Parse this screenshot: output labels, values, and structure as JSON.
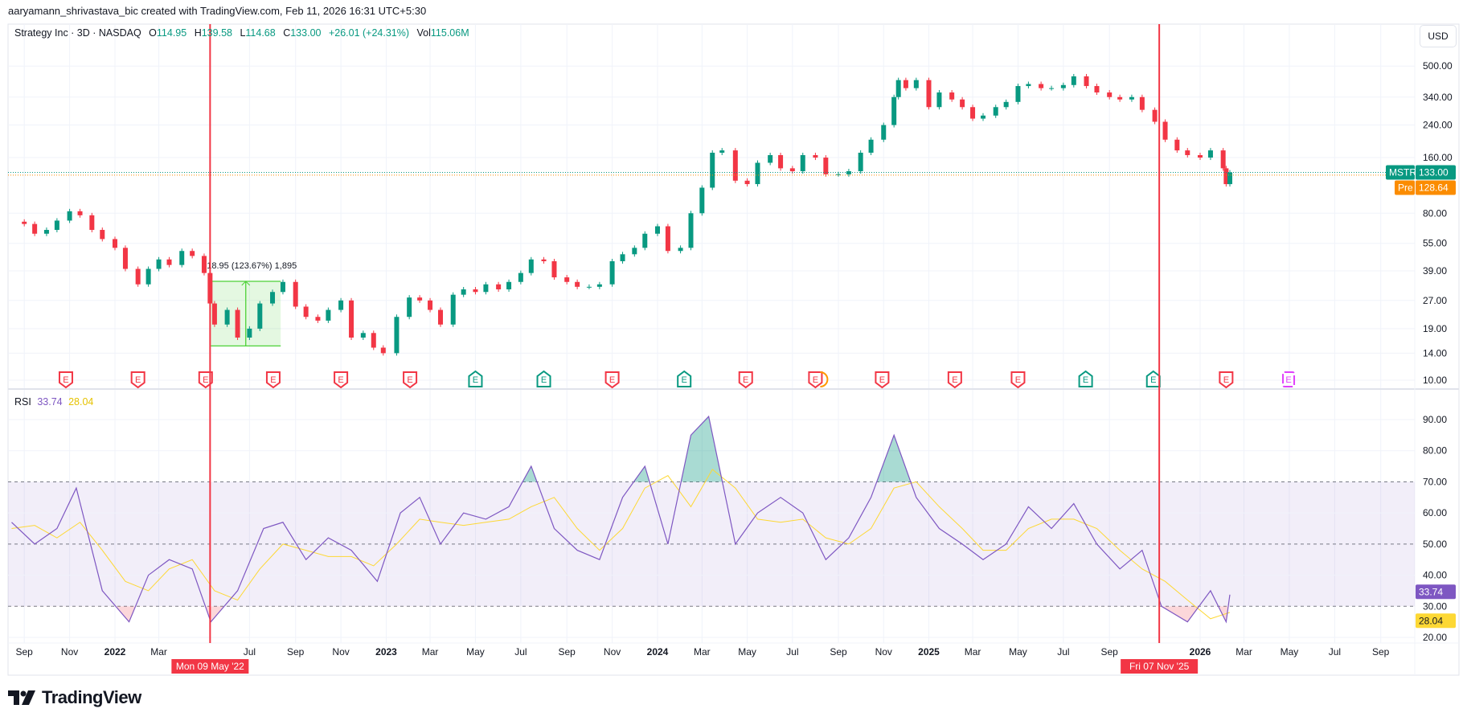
{
  "header": {
    "credit": "aaryamann_shrivastava_bic created with TradingView.com, Feb 11, 2026 16:31 UTC+5:30"
  },
  "legend": {
    "symbol": "Strategy Inc · 3D · NASDAQ",
    "open_label": "O",
    "open": "114.95",
    "high_label": "H",
    "high": "139.58",
    "low_label": "L",
    "low": "114.68",
    "close_label": "C",
    "close": "133.00",
    "change": "+26.01 (+24.31%)",
    "vol_label": "Vol",
    "vol": "115.06M"
  },
  "price_axis": {
    "currency": "USD",
    "ticks": [
      "500.00",
      "340.00",
      "240.00",
      "160.00",
      "80.00",
      "55.00",
      "39.00",
      "27.00",
      "19.00",
      "14.00",
      "10.00"
    ]
  },
  "tags": {
    "symbol": "MSTR",
    "last": "133.00",
    "pre_label": "Pre",
    "pre": "128.64"
  },
  "rsi_legend": {
    "label": "RSI",
    "rsi": "33.74",
    "ma": "28.04"
  },
  "rsi_axis": {
    "ticks": [
      "90.00",
      "80.00",
      "70.00",
      "60.00",
      "50.00",
      "40.00",
      "30.00",
      "20.00"
    ]
  },
  "time_axis": {
    "ticks": [
      [
        "2021-09-01",
        "Sep"
      ],
      [
        "2021-11-01",
        "Nov"
      ],
      [
        "2022-01-01",
        "2022"
      ],
      [
        "2022-03-01",
        "Mar"
      ],
      [
        "2022-07-01",
        "Jul"
      ],
      [
        "2022-09-01",
        "Sep"
      ],
      [
        "2022-11-01",
        "Nov"
      ],
      [
        "2023-01-01",
        "2023"
      ],
      [
        "2023-03-01",
        "Mar"
      ],
      [
        "2023-05-01",
        "May"
      ],
      [
        "2023-07-01",
        "Jul"
      ],
      [
        "2023-09-01",
        "Sep"
      ],
      [
        "2023-11-01",
        "Nov"
      ],
      [
        "2024-01-01",
        "2024"
      ],
      [
        "2024-03-01",
        "Mar"
      ],
      [
        "2024-05-01",
        "May"
      ],
      [
        "2024-07-01",
        "Jul"
      ],
      [
        "2024-09-01",
        "Sep"
      ],
      [
        "2024-11-01",
        "Nov"
      ],
      [
        "2025-01-01",
        "2025"
      ],
      [
        "2025-03-01",
        "Mar"
      ],
      [
        "2025-05-01",
        "May"
      ],
      [
        "2025-07-01",
        "Jul"
      ],
      [
        "2025-09-01",
        "Sep"
      ],
      [
        "2026-01-01",
        "2026"
      ],
      [
        "2026-03-01",
        "Mar"
      ],
      [
        "2026-05-01",
        "May"
      ],
      [
        "2026-07-01",
        "Jul"
      ],
      [
        "2026-09-01",
        "Sep"
      ]
    ],
    "markers": [
      {
        "date": "2022-05-09",
        "label": "Mon 09 May '22"
      },
      {
        "date": "2025-11-07",
        "label": "Fri 07 Nov '25"
      }
    ]
  },
  "measure": {
    "start": "2022-05-10",
    "end": "2022-08-12",
    "from": 15.32,
    "to": 34.27,
    "label": "18.95 (123.67%) 1,895"
  },
  "earnings": [
    {
      "date": "2021-10-27",
      "result": "miss"
    },
    {
      "date": "2022-02-01",
      "result": "miss"
    },
    {
      "date": "2022-05-03",
      "result": "miss"
    },
    {
      "date": "2022-08-02",
      "result": "miss"
    },
    {
      "date": "2022-11-01",
      "result": "miss"
    },
    {
      "date": "2023-02-02",
      "result": "miss"
    },
    {
      "date": "2023-05-01",
      "result": "beat"
    },
    {
      "date": "2023-08-01",
      "result": "beat"
    },
    {
      "date": "2023-11-01",
      "result": "miss"
    },
    {
      "date": "2024-02-06",
      "result": "beat"
    },
    {
      "date": "2024-04-29",
      "result": "miss"
    },
    {
      "date": "2024-08-01",
      "result": "miss",
      "split": true
    },
    {
      "date": "2024-10-30",
      "result": "miss"
    },
    {
      "date": "2025-02-05",
      "result": "miss"
    },
    {
      "date": "2025-05-01",
      "result": "miss"
    },
    {
      "date": "2025-07-31",
      "result": "beat"
    },
    {
      "date": "2025-10-30",
      "result": "beat"
    },
    {
      "date": "2026-02-05",
      "result": "miss"
    },
    {
      "date": "2026-04-30",
      "result": "upcoming"
    }
  ],
  "colors": {
    "up": "#089981",
    "down": "#f23645",
    "rsi": "#7e57c2",
    "rsi_ma": "#fdd835",
    "pre": "#fb8c00",
    "marker": "#f23645",
    "measure": "#4cd137",
    "upcoming": "#e040fb"
  },
  "chart_data": {
    "type": "candlestick",
    "price_scale": "log",
    "ylim": [
      10,
      560
    ],
    "grid": true,
    "closes": [
      [
        "2021-08-15",
        72
      ],
      [
        "2021-09-01",
        70
      ],
      [
        "2021-09-15",
        62
      ],
      [
        "2021-10-01",
        65
      ],
      [
        "2021-10-15",
        73
      ],
      [
        "2021-11-01",
        82
      ],
      [
        "2021-11-15",
        78
      ],
      [
        "2021-12-01",
        65
      ],
      [
        "2021-12-15",
        58
      ],
      [
        "2022-01-01",
        52
      ],
      [
        "2022-01-15",
        40
      ],
      [
        "2022-02-01",
        33
      ],
      [
        "2022-02-15",
        40
      ],
      [
        "2022-03-01",
        45
      ],
      [
        "2022-03-15",
        42
      ],
      [
        "2022-04-01",
        50
      ],
      [
        "2022-04-15",
        47
      ],
      [
        "2022-05-01",
        38
      ],
      [
        "2022-05-09",
        26
      ],
      [
        "2022-05-15",
        20
      ],
      [
        "2022-06-01",
        24
      ],
      [
        "2022-06-15",
        17
      ],
      [
        "2022-07-01",
        19
      ],
      [
        "2022-07-15",
        26
      ],
      [
        "2022-08-01",
        30
      ],
      [
        "2022-08-15",
        34
      ],
      [
        "2022-09-01",
        25
      ],
      [
        "2022-09-15",
        22
      ],
      [
        "2022-10-01",
        21
      ],
      [
        "2022-10-15",
        24
      ],
      [
        "2022-11-01",
        27
      ],
      [
        "2022-11-15",
        17
      ],
      [
        "2022-12-01",
        18
      ],
      [
        "2022-12-15",
        15
      ],
      [
        "2022-12-28",
        14
      ],
      [
        "2023-01-15",
        22
      ],
      [
        "2023-02-01",
        28
      ],
      [
        "2023-02-15",
        27
      ],
      [
        "2023-03-01",
        24
      ],
      [
        "2023-03-15",
        20
      ],
      [
        "2023-04-01",
        29
      ],
      [
        "2023-04-15",
        31
      ],
      [
        "2023-05-01",
        30
      ],
      [
        "2023-05-15",
        33
      ],
      [
        "2023-06-01",
        31
      ],
      [
        "2023-06-15",
        34
      ],
      [
        "2023-07-01",
        38
      ],
      [
        "2023-07-15",
        45
      ],
      [
        "2023-08-01",
        44
      ],
      [
        "2023-08-15",
        36
      ],
      [
        "2023-09-01",
        34
      ],
      [
        "2023-09-15",
        32
      ],
      [
        "2023-10-01",
        32
      ],
      [
        "2023-10-15",
        33
      ],
      [
        "2023-11-01",
        44
      ],
      [
        "2023-11-15",
        48
      ],
      [
        "2023-12-01",
        52
      ],
      [
        "2023-12-15",
        62
      ],
      [
        "2024-01-01",
        68
      ],
      [
        "2024-01-15",
        50
      ],
      [
        "2024-02-01",
        52
      ],
      [
        "2024-02-15",
        80
      ],
      [
        "2024-03-01",
        110
      ],
      [
        "2024-03-15",
        170
      ],
      [
        "2024-03-28",
        175
      ],
      [
        "2024-04-15",
        120
      ],
      [
        "2024-05-01",
        115
      ],
      [
        "2024-05-15",
        150
      ],
      [
        "2024-06-01",
        165
      ],
      [
        "2024-06-15",
        140
      ],
      [
        "2024-07-01",
        135
      ],
      [
        "2024-07-15",
        165
      ],
      [
        "2024-08-01",
        160
      ],
      [
        "2024-08-15",
        130
      ],
      [
        "2024-09-01",
        130
      ],
      [
        "2024-09-15",
        135
      ],
      [
        "2024-10-01",
        170
      ],
      [
        "2024-10-15",
        200
      ],
      [
        "2024-11-01",
        240
      ],
      [
        "2024-11-15",
        340
      ],
      [
        "2024-11-21",
        420
      ],
      [
        "2024-12-01",
        380
      ],
      [
        "2024-12-15",
        420
      ],
      [
        "2025-01-01",
        300
      ],
      [
        "2025-01-15",
        360
      ],
      [
        "2025-02-01",
        330
      ],
      [
        "2025-02-15",
        300
      ],
      [
        "2025-03-01",
        260
      ],
      [
        "2025-03-15",
        270
      ],
      [
        "2025-04-01",
        300
      ],
      [
        "2025-04-15",
        320
      ],
      [
        "2025-05-01",
        390
      ],
      [
        "2025-05-15",
        400
      ],
      [
        "2025-06-01",
        380
      ],
      [
        "2025-06-15",
        380
      ],
      [
        "2025-07-01",
        395
      ],
      [
        "2025-07-15",
        440
      ],
      [
        "2025-08-01",
        390
      ],
      [
        "2025-08-15",
        360
      ],
      [
        "2025-09-01",
        340
      ],
      [
        "2025-09-15",
        330
      ],
      [
        "2025-10-01",
        340
      ],
      [
        "2025-10-15",
        290
      ],
      [
        "2025-11-01",
        250
      ],
      [
        "2025-11-15",
        200
      ],
      [
        "2025-12-01",
        175
      ],
      [
        "2025-12-15",
        165
      ],
      [
        "2026-01-01",
        160
      ],
      [
        "2026-01-15",
        175
      ],
      [
        "2026-02-01",
        140
      ],
      [
        "2026-02-05",
        114.95
      ],
      [
        "2026-02-10",
        133
      ]
    ],
    "last_price": 133.0,
    "pre_market_price": 128.64,
    "rsi": {
      "ylim": [
        15,
        95
      ],
      "overbought": 70,
      "middle": 50,
      "oversold": 30,
      "values": [
        [
          "2021-08-15",
          57
        ],
        [
          "2021-09-15",
          50
        ],
        [
          "2021-10-15",
          55
        ],
        [
          "2021-11-10",
          68
        ],
        [
          "2021-12-15",
          35
        ],
        [
          "2022-01-20",
          25
        ],
        [
          "2022-02-15",
          40
        ],
        [
          "2022-03-15",
          45
        ],
        [
          "2022-04-15",
          42
        ],
        [
          "2022-05-10",
          25
        ],
        [
          "2022-06-15",
          35
        ],
        [
          "2022-07-20",
          55
        ],
        [
          "2022-08-15",
          57
        ],
        [
          "2022-09-15",
          45
        ],
        [
          "2022-10-15",
          52
        ],
        [
          "2022-11-15",
          48
        ],
        [
          "2022-12-20",
          38
        ],
        [
          "2023-01-20",
          60
        ],
        [
          "2023-02-15",
          65
        ],
        [
          "2023-03-15",
          50
        ],
        [
          "2023-04-15",
          60
        ],
        [
          "2023-05-15",
          58
        ],
        [
          "2023-06-15",
          62
        ],
        [
          "2023-07-15",
          75
        ],
        [
          "2023-08-15",
          55
        ],
        [
          "2023-09-15",
          48
        ],
        [
          "2023-10-15",
          45
        ],
        [
          "2023-11-15",
          65
        ],
        [
          "2023-12-15",
          75
        ],
        [
          "2024-01-15",
          50
        ],
        [
          "2024-02-15",
          85
        ],
        [
          "2024-03-10",
          91
        ],
        [
          "2024-04-15",
          50
        ],
        [
          "2024-05-15",
          60
        ],
        [
          "2024-06-15",
          65
        ],
        [
          "2024-07-15",
          60
        ],
        [
          "2024-08-15",
          45
        ],
        [
          "2024-09-15",
          52
        ],
        [
          "2024-10-15",
          65
        ],
        [
          "2024-11-15",
          85
        ],
        [
          "2024-12-15",
          65
        ],
        [
          "2025-01-15",
          55
        ],
        [
          "2025-02-15",
          50
        ],
        [
          "2025-03-15",
          45
        ],
        [
          "2025-04-15",
          50
        ],
        [
          "2025-05-15",
          62
        ],
        [
          "2025-06-15",
          55
        ],
        [
          "2025-07-15",
          63
        ],
        [
          "2025-08-15",
          50
        ],
        [
          "2025-09-15",
          42
        ],
        [
          "2025-10-15",
          48
        ],
        [
          "2025-11-10",
          30
        ],
        [
          "2025-12-15",
          25
        ],
        [
          "2026-01-15",
          35
        ],
        [
          "2026-02-05",
          25
        ],
        [
          "2026-02-10",
          33.74
        ]
      ],
      "ma": [
        [
          "2021-08-15",
          55
        ],
        [
          "2021-09-15",
          56
        ],
        [
          "2021-10-15",
          52
        ],
        [
          "2021-11-15",
          57
        ],
        [
          "2021-12-15",
          48
        ],
        [
          "2022-01-15",
          38
        ],
        [
          "2022-02-15",
          35
        ],
        [
          "2022-03-15",
          42
        ],
        [
          "2022-04-15",
          45
        ],
        [
          "2022-05-15",
          35
        ],
        [
          "2022-06-15",
          32
        ],
        [
          "2022-07-15",
          42
        ],
        [
          "2022-08-15",
          50
        ],
        [
          "2022-09-15",
          48
        ],
        [
          "2022-10-15",
          46
        ],
        [
          "2022-11-15",
          46
        ],
        [
          "2022-12-15",
          43
        ],
        [
          "2023-01-15",
          50
        ],
        [
          "2023-02-15",
          58
        ],
        [
          "2023-03-15",
          57
        ],
        [
          "2023-04-15",
          56
        ],
        [
          "2023-05-15",
          57
        ],
        [
          "2023-06-15",
          58
        ],
        [
          "2023-07-15",
          62
        ],
        [
          "2023-08-15",
          65
        ],
        [
          "2023-09-15",
          55
        ],
        [
          "2023-10-15",
          48
        ],
        [
          "2023-11-15",
          55
        ],
        [
          "2023-12-15",
          68
        ],
        [
          "2024-01-15",
          72
        ],
        [
          "2024-02-15",
          62
        ],
        [
          "2024-03-15",
          74
        ],
        [
          "2024-04-15",
          68
        ],
        [
          "2024-05-15",
          58
        ],
        [
          "2024-06-15",
          57
        ],
        [
          "2024-07-15",
          58
        ],
        [
          "2024-08-15",
          52
        ],
        [
          "2024-09-15",
          50
        ],
        [
          "2024-10-15",
          55
        ],
        [
          "2024-11-15",
          68
        ],
        [
          "2024-12-15",
          70
        ],
        [
          "2025-01-15",
          62
        ],
        [
          "2025-02-15",
          55
        ],
        [
          "2025-03-15",
          48
        ],
        [
          "2025-04-15",
          48
        ],
        [
          "2025-05-15",
          55
        ],
        [
          "2025-06-15",
          58
        ],
        [
          "2025-07-15",
          58
        ],
        [
          "2025-08-15",
          55
        ],
        [
          "2025-09-15",
          48
        ],
        [
          "2025-10-15",
          42
        ],
        [
          "2025-11-15",
          38
        ],
        [
          "2025-12-15",
          32
        ],
        [
          "2026-01-15",
          26
        ],
        [
          "2026-02-10",
          28.04
        ]
      ]
    }
  },
  "branding": {
    "logo_text": "TradingView"
  }
}
